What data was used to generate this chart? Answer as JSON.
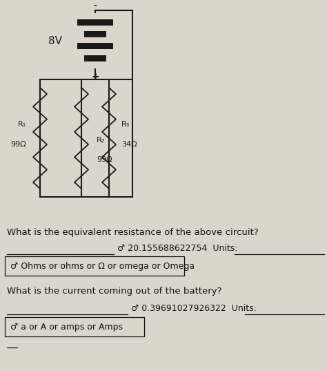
{
  "bg_color": "#cdc8bc",
  "paper_color": "#e8e4da",
  "line_color": "#1a1a1a",
  "text_color": "#111111",
  "faded_color": "#b0a898",
  "circuit": {
    "battery_voltage": "8V",
    "R1_label": "R₁",
    "R1_value": "99Ω",
    "R2_label": "R₂",
    "R2_value": "99Ω",
    "R3_label": "R₃",
    "R3_value": "34Ω"
  },
  "q1_text": "What is the equivalent resistance of the above circuit?",
  "q1_answer": "♂ 20.155688622754  Units:",
  "q1_units": "♂ Ohms or ohms or Ω or omega or Omega",
  "q2_text": "What is the current coming out of the battery?",
  "q2_answer": "♂ 0.39691027926322  Units:",
  "q2_units": "♂ a or A or amps or Amps",
  "figw": 4.74,
  "figh": 5.37,
  "dpi": 100
}
